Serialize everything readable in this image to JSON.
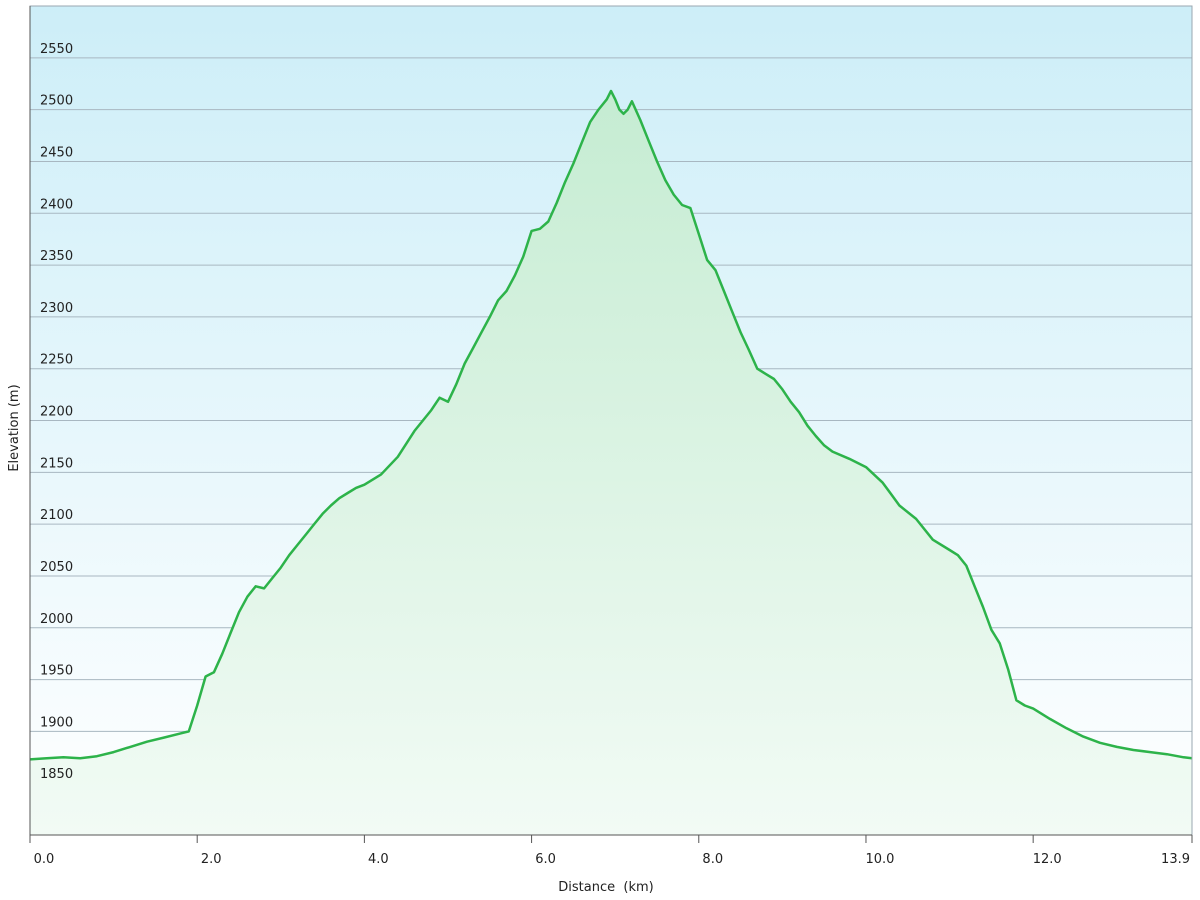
{
  "chart_data": {
    "type": "area",
    "title": "",
    "xlabel": "Distance  (km)",
    "ylabel": "Elevation (m)",
    "xlim": [
      0,
      13.9
    ],
    "ylim": [
      1800,
      2600
    ],
    "x_ticks": [
      "0.0",
      "2.0",
      "4.0",
      "6.0",
      "8.0",
      "10.0",
      "12.0",
      "13.9"
    ],
    "y_ticks": [
      "1850",
      "1900",
      "1950",
      "2000",
      "2050",
      "2100",
      "2150",
      "2200",
      "2250",
      "2300",
      "2350",
      "2400",
      "2450",
      "2500",
      "2550"
    ],
    "grid": true,
    "legend": "none",
    "colors": {
      "line": "#2db34a",
      "fill_top": "#c5ecd2",
      "fill_bottom": "#f2fbf5",
      "bg_top": "#cdeef8",
      "bg_bottom": "#ffffff",
      "grid": "#a8b7c1"
    },
    "series": [
      {
        "x": [
          0.0,
          0.2,
          0.4,
          0.6,
          0.8,
          1.0,
          1.2,
          1.4,
          1.6,
          1.8,
          1.9,
          2.0,
          2.1,
          2.2,
          2.3,
          2.4,
          2.5,
          2.6,
          2.7,
          2.8,
          2.9,
          3.0,
          3.1,
          3.2,
          3.3,
          3.4,
          3.5,
          3.6,
          3.7,
          3.8,
          3.9,
          4.0,
          4.2,
          4.4,
          4.6,
          4.7,
          4.8,
          4.9,
          5.0,
          5.1,
          5.2,
          5.3,
          5.4,
          5.5,
          5.6,
          5.7,
          5.8,
          5.9,
          6.0,
          6.1,
          6.2,
          6.3,
          6.4,
          6.5,
          6.6,
          6.7,
          6.8,
          6.9,
          6.95,
          7.0,
          7.05,
          7.1,
          7.15,
          7.2,
          7.3,
          7.4,
          7.5,
          7.6,
          7.7,
          7.8,
          7.9,
          8.0,
          8.1,
          8.2,
          8.3,
          8.4,
          8.5,
          8.6,
          8.7,
          8.8,
          8.9,
          9.0,
          9.1,
          9.2,
          9.3,
          9.4,
          9.5,
          9.6,
          9.8,
          10.0,
          10.2,
          10.4,
          10.6,
          10.8,
          11.0,
          11.1,
          11.2,
          11.3,
          11.4,
          11.5,
          11.6,
          11.7,
          11.8,
          11.9,
          12.0,
          12.2,
          12.4,
          12.6,
          12.8,
          13.0,
          13.2,
          13.4,
          13.6,
          13.8,
          13.9
        ],
        "values": [
          1873,
          1874,
          1875,
          1874,
          1876,
          1880,
          1885,
          1890,
          1894,
          1898,
          1900,
          1925,
          1953,
          1957,
          1975,
          1995,
          2015,
          2030,
          2040,
          2038,
          2048,
          2058,
          2070,
          2080,
          2090,
          2100,
          2110,
          2118,
          2125,
          2130,
          2135,
          2138,
          2148,
          2165,
          2190,
          2200,
          2210,
          2222,
          2218,
          2235,
          2255,
          2270,
          2285,
          2300,
          2316,
          2325,
          2340,
          2358,
          2383,
          2385,
          2392,
          2410,
          2430,
          2448,
          2468,
          2488,
          2500,
          2510,
          2518,
          2510,
          2500,
          2496,
          2500,
          2508,
          2490,
          2470,
          2450,
          2432,
          2418,
          2408,
          2405,
          2380,
          2355,
          2345,
          2325,
          2305,
          2285,
          2268,
          2250,
          2245,
          2240,
          2230,
          2218,
          2208,
          2195,
          2185,
          2176,
          2170,
          2163,
          2155,
          2140,
          2118,
          2105,
          2085,
          2075,
          2070,
          2060,
          2040,
          2020,
          1998,
          1985,
          1960,
          1930,
          1925,
          1922,
          1912,
          1903,
          1895,
          1889,
          1885,
          1882,
          1880,
          1878,
          1875,
          1874
        ]
      }
    ]
  }
}
